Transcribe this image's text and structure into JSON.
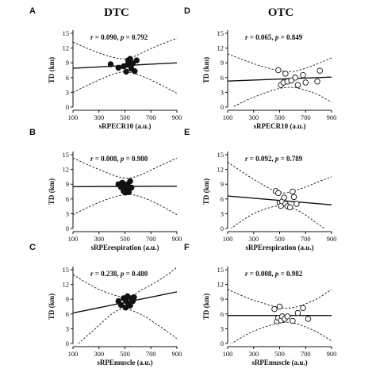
{
  "column_titles": [
    "DTC",
    "OTC"
  ],
  "chart_data": [
    {
      "type": "scatter",
      "letter": "A",
      "column": 0,
      "row": 0,
      "xlabel": "sRPECR10 (a.u.)",
      "ylabel": "TD (km)",
      "xlim": [
        100,
        900
      ],
      "ylim": [
        0,
        15
      ],
      "xticks": [
        100,
        300,
        500,
        700,
        900
      ],
      "yticks": [
        0,
        3,
        6,
        9,
        12,
        15
      ],
      "stat_r": "0.090",
      "stat_p": "0.792",
      "marker": "filled",
      "points": [
        [
          390,
          8.7
        ],
        [
          450,
          8.0
        ],
        [
          490,
          8.3
        ],
        [
          510,
          7.2
        ],
        [
          520,
          8.6
        ],
        [
          525,
          9.5
        ],
        [
          540,
          9.8
        ],
        [
          550,
          7.8
        ],
        [
          560,
          8.9
        ],
        [
          575,
          7.3
        ],
        [
          590,
          9.5
        ]
      ],
      "fit": [
        7.9,
        9.0
      ],
      "ci_upper": [
        [
          100,
          13.2
        ],
        [
          300,
          11.0
        ],
        [
          450,
          9.9
        ],
        [
          550,
          10.1
        ],
        [
          700,
          11.9
        ],
        [
          900,
          14.0
        ]
      ],
      "ci_lower": [
        [
          100,
          3.0
        ],
        [
          300,
          5.5
        ],
        [
          450,
          7.0
        ],
        [
          550,
          7.0
        ],
        [
          700,
          5.5
        ],
        [
          900,
          2.8
        ]
      ]
    },
    {
      "type": "scatter",
      "letter": "B",
      "column": 0,
      "row": 1,
      "xlabel": "sRPErespiration (a.u.)",
      "ylabel": "TD (km)",
      "xlim": [
        100,
        900
      ],
      "ylim": [
        0,
        15
      ],
      "xticks": [
        100,
        300,
        500,
        700,
        900
      ],
      "yticks": [
        0,
        3,
        6,
        9,
        12,
        15
      ],
      "stat_r": "0.008",
      "stat_p": "0.980",
      "marker": "filled",
      "points": [
        [
          450,
          9.0
        ],
        [
          470,
          8.4
        ],
        [
          480,
          9.3
        ],
        [
          490,
          7.6
        ],
        [
          500,
          8.8
        ],
        [
          505,
          7.3
        ],
        [
          515,
          8.0
        ],
        [
          520,
          9.0
        ],
        [
          530,
          7.4
        ],
        [
          540,
          9.6
        ],
        [
          550,
          8.3
        ]
      ],
      "fit": [
        8.5,
        8.6
      ],
      "ci_upper": [
        [
          100,
          14.3
        ],
        [
          300,
          12.0
        ],
        [
          480,
          10.3
        ],
        [
          600,
          10.7
        ],
        [
          750,
          12.5
        ],
        [
          900,
          14.3
        ]
      ],
      "ci_lower": [
        [
          100,
          2.8
        ],
        [
          300,
          5.3
        ],
        [
          480,
          6.8
        ],
        [
          600,
          6.6
        ],
        [
          750,
          5.0
        ],
        [
          900,
          2.8
        ]
      ]
    },
    {
      "type": "scatter",
      "letter": "C",
      "column": 0,
      "row": 2,
      "xlabel": "sRPEmuscle (a.u.)",
      "ylabel": "TD (km)",
      "xlim": [
        100,
        900
      ],
      "ylim": [
        0,
        15
      ],
      "xticks": [
        100,
        300,
        500,
        700,
        900
      ],
      "yticks": [
        0,
        3,
        6,
        9,
        12,
        15
      ],
      "stat_r": "0.238",
      "stat_p": "0.480",
      "marker": "filled",
      "points": [
        [
          450,
          8.6
        ],
        [
          470,
          7.8
        ],
        [
          490,
          9.2
        ],
        [
          505,
          7.3
        ],
        [
          510,
          8.6
        ],
        [
          520,
          9.6
        ],
        [
          530,
          8.0
        ],
        [
          540,
          7.7
        ],
        [
          550,
          9.2
        ],
        [
          560,
          8.6
        ],
        [
          570,
          9.4
        ]
      ],
      "fit": [
        6.2,
        10.5
      ],
      "ci_upper": [
        [
          100,
          14.0
        ],
        [
          300,
          11.0
        ],
        [
          500,
          9.5
        ],
        [
          650,
          11.2
        ],
        [
          800,
          13.5
        ],
        [
          900,
          15.5
        ]
      ],
      "ci_lower": [
        [
          100,
          -1.0
        ],
        [
          250,
          2.5
        ],
        [
          450,
          6.8
        ],
        [
          600,
          6.2
        ],
        [
          750,
          3.8
        ],
        [
          900,
          1.0
        ]
      ]
    },
    {
      "type": "scatter",
      "letter": "D",
      "column": 1,
      "row": 0,
      "xlabel": "sRPECR10 (a.u.)",
      "ylabel": "TD (km)",
      "xlim": [
        100,
        900
      ],
      "ylim": [
        0,
        15
      ],
      "xticks": [
        100,
        300,
        500,
        700,
        900
      ],
      "yticks": [
        0,
        3,
        6,
        9,
        12,
        15
      ],
      "stat_r": "0.065",
      "stat_p": "0.849",
      "marker": "open",
      "points": [
        [
          490,
          7.5
        ],
        [
          510,
          4.5
        ],
        [
          530,
          5.0
        ],
        [
          545,
          6.8
        ],
        [
          560,
          5.2
        ],
        [
          590,
          5.4
        ],
        [
          620,
          6.0
        ],
        [
          640,
          4.5
        ],
        [
          680,
          6.5
        ],
        [
          700,
          5.0
        ],
        [
          790,
          5.2
        ],
        [
          810,
          7.4
        ]
      ],
      "fit": [
        5.3,
        6.1
      ],
      "ci_upper": [
        [
          100,
          10.8
        ],
        [
          350,
          8.4
        ],
        [
          550,
          7.2
        ],
        [
          700,
          7.9
        ],
        [
          900,
          10.0
        ]
      ],
      "ci_lower": [
        [
          100,
          -0.5
        ],
        [
          300,
          2.0
        ],
        [
          550,
          4.0
        ],
        [
          750,
          3.0
        ],
        [
          900,
          1.0
        ]
      ]
    },
    {
      "type": "scatter",
      "letter": "E",
      "column": 1,
      "row": 1,
      "xlabel": "sRPErespiration (a.u.)",
      "ylabel": "TD (km)",
      "xlim": [
        100,
        900
      ],
      "ylim": [
        0,
        15
      ],
      "xticks": [
        100,
        300,
        500,
        700,
        900
      ],
      "yticks": [
        0,
        3,
        6,
        9,
        12,
        15
      ],
      "stat_r": "0.092",
      "stat_p": "0.789",
      "marker": "open",
      "points": [
        [
          470,
          7.6
        ],
        [
          490,
          7.2
        ],
        [
          500,
          5.2
        ],
        [
          510,
          4.6
        ],
        [
          520,
          5.5
        ],
        [
          535,
          6.3
        ],
        [
          545,
          5.0
        ],
        [
          560,
          4.5
        ],
        [
          580,
          4.3
        ],
        [
          600,
          7.5
        ],
        [
          610,
          6.4
        ],
        [
          630,
          5.0
        ]
      ],
      "fit": [
        6.6,
        4.8
      ],
      "ci_upper": [
        [
          100,
          13.5
        ],
        [
          300,
          10.0
        ],
        [
          500,
          7.3
        ],
        [
          650,
          8.0
        ],
        [
          800,
          9.5
        ],
        [
          900,
          10.5
        ]
      ],
      "ci_lower": [
        [
          100,
          -0.5
        ],
        [
          300,
          3.0
        ],
        [
          500,
          4.6
        ],
        [
          650,
          3.5
        ],
        [
          800,
          0.8
        ],
        [
          900,
          -1.0
        ]
      ]
    },
    {
      "type": "scatter",
      "letter": "F",
      "column": 1,
      "row": 2,
      "xlabel": "sRPEmuscle (a.u.)",
      "ylabel": "TD (km)",
      "xlim": [
        100,
        900
      ],
      "ylim": [
        0,
        15
      ],
      "xticks": [
        100,
        300,
        500,
        700,
        900
      ],
      "yticks": [
        0,
        3,
        6,
        9,
        12,
        15
      ],
      "stat_r": "0.008",
      "stat_p": "0.982",
      "marker": "open",
      "points": [
        [
          460,
          7.0
        ],
        [
          480,
          4.5
        ],
        [
          490,
          5.2
        ],
        [
          500,
          7.5
        ],
        [
          510,
          4.7
        ],
        [
          520,
          5.5
        ],
        [
          540,
          5.0
        ],
        [
          560,
          5.5
        ],
        [
          600,
          4.6
        ],
        [
          640,
          6.2
        ],
        [
          680,
          7.2
        ],
        [
          720,
          5.0
        ]
      ],
      "fit": [
        5.7,
        5.7
      ],
      "ci_upper": [
        [
          100,
          11.0
        ],
        [
          300,
          8.8
        ],
        [
          550,
          7.2
        ],
        [
          750,
          8.6
        ],
        [
          900,
          11.0
        ]
      ],
      "ci_lower": [
        [
          100,
          -0.5
        ],
        [
          300,
          2.5
        ],
        [
          550,
          4.3
        ],
        [
          750,
          2.8
        ],
        [
          900,
          0.5
        ]
      ]
    }
  ]
}
